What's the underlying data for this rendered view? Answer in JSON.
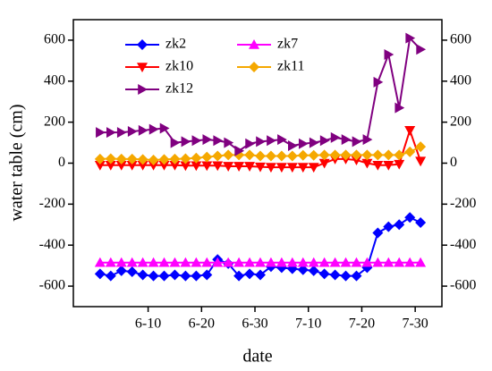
{
  "chart_data": {
    "type": "line",
    "xlabel": "date",
    "ylabel": "water table (cm)",
    "x": [
      1,
      3,
      5,
      7,
      9,
      11,
      13,
      15,
      17,
      19,
      21,
      23,
      25,
      27,
      29,
      31,
      33,
      35,
      37,
      39,
      41,
      43,
      45,
      47,
      49,
      51,
      53,
      55,
      57,
      59,
      61
    ],
    "xlim": [
      -4,
      65
    ],
    "xticks": [
      {
        "value": 10,
        "label": "6-10"
      },
      {
        "value": 20,
        "label": "6-20"
      },
      {
        "value": 30,
        "label": "6-30"
      },
      {
        "value": 40,
        "label": "7-10"
      },
      {
        "value": 50,
        "label": "7-20"
      },
      {
        "value": 60,
        "label": "7-30"
      }
    ],
    "ylim": [
      -700,
      700
    ],
    "yticks": [
      -600,
      -400,
      -200,
      0,
      200,
      400,
      600
    ],
    "series": [
      {
        "name": "zk2",
        "color": "#0000ff",
        "marker": "diamond",
        "values": [
          -540,
          -550,
          -525,
          -530,
          -545,
          -550,
          -550,
          -545,
          -550,
          -550,
          -545,
          -470,
          -490,
          -550,
          -540,
          -545,
          -505,
          -510,
          -515,
          -520,
          -525,
          -540,
          -545,
          -550,
          -550,
          -510,
          -340,
          -310,
          -300,
          -265,
          -290
        ]
      },
      {
        "name": "zk7",
        "color": "#ff00ff",
        "marker": "triangle-up",
        "values": [
          -485,
          -485,
          -485,
          -485,
          -485,
          -485,
          -485,
          -485,
          -485,
          -485,
          -485,
          -485,
          -485,
          -485,
          -485,
          -485,
          -485,
          -485,
          -485,
          -485,
          -485,
          -485,
          -485,
          -485,
          -485,
          -485,
          -485,
          -485,
          -485,
          -485,
          -485
        ]
      },
      {
        "name": "zk10",
        "color": "#ff0000",
        "marker": "triangle-down",
        "values": [
          -10,
          -10,
          -10,
          -10,
          -10,
          -10,
          -10,
          -10,
          -12,
          -12,
          -12,
          -12,
          -15,
          -15,
          -15,
          -18,
          -20,
          -20,
          -20,
          -20,
          -20,
          0,
          20,
          20,
          15,
          0,
          -10,
          -10,
          -5,
          160,
          10
        ]
      },
      {
        "name": "zk11",
        "color": "#f5a800",
        "marker": "diamond",
        "values": [
          20,
          22,
          20,
          20,
          18,
          15,
          18,
          20,
          22,
          25,
          30,
          35,
          40,
          40,
          40,
          35,
          35,
          35,
          35,
          38,
          38,
          40,
          40,
          40,
          40,
          40,
          40,
          40,
          40,
          55,
          80
        ]
      },
      {
        "name": "zk12",
        "color": "#800080",
        "marker": "triangle-right",
        "values": [
          150,
          150,
          150,
          155,
          160,
          165,
          170,
          100,
          105,
          110,
          115,
          110,
          100,
          60,
          95,
          105,
          110,
          115,
          85,
          95,
          100,
          110,
          125,
          115,
          105,
          115,
          395,
          530,
          270,
          610,
          555
        ]
      }
    ]
  }
}
